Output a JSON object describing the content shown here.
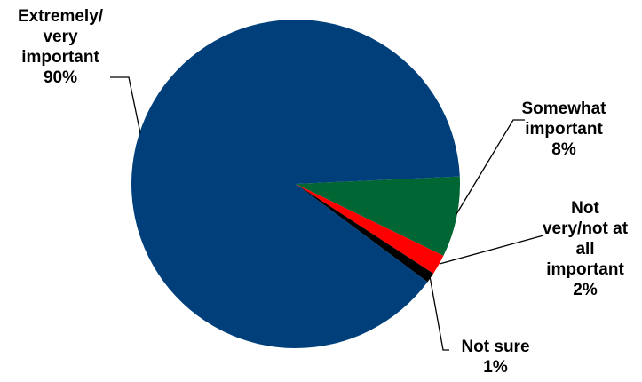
{
  "chart_data": {
    "type": "pie",
    "title": "",
    "slices": [
      {
        "label": "Somewhat important",
        "value": 8,
        "color": "#006633",
        "label_lines": [
          "Somewhat",
          "important",
          "8%"
        ]
      },
      {
        "label": "Not very/not at all important",
        "value": 2,
        "color": "#ff0000",
        "label_lines": [
          "Not",
          "very/not at",
          "all",
          "important",
          "2%"
        ]
      },
      {
        "label": "Not sure",
        "value": 1,
        "color": "#000000",
        "label_lines": [
          "Not sure",
          "1%"
        ]
      },
      {
        "label": "Extremely/ very important",
        "value": 90,
        "color": "#003f7a",
        "label_lines": [
          "Extremely/",
          "very",
          "important",
          "90%"
        ]
      }
    ],
    "legend": "none"
  }
}
